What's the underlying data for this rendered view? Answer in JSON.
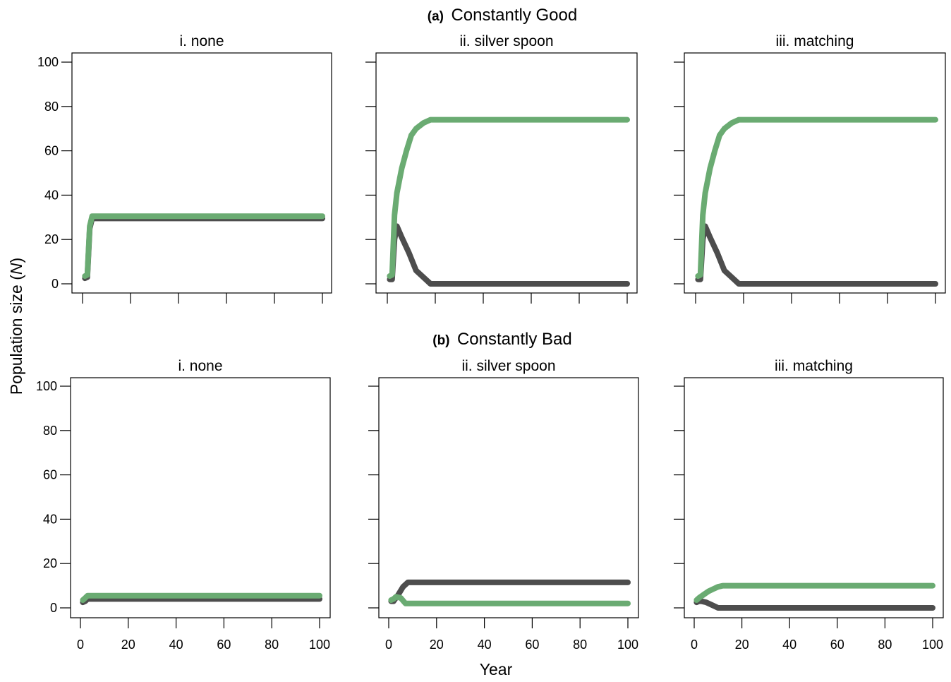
{
  "figure": {
    "ylabel_prefix": "Population size (",
    "ylabel_var": "N",
    "ylabel_suffix": ")",
    "xlabel": "Year",
    "sections": [
      {
        "tag": "(a)",
        "title": "Constantly Good"
      },
      {
        "tag": "(b)",
        "title": "Constantly Bad"
      }
    ],
    "y_ticks": [
      "0",
      "20",
      "40",
      "60",
      "80",
      "100"
    ],
    "x_ticks": [
      "0",
      "20",
      "40",
      "60",
      "80",
      "100"
    ],
    "colors": {
      "dark_series": "#4d4d4d",
      "green_series": "#6aab72",
      "axis": "#000000"
    }
  },
  "chart_data": [
    {
      "type": "line",
      "section": "Constantly Good",
      "title": "i. none",
      "xlim": [
        0,
        100
      ],
      "ylim": [
        0,
        100
      ],
      "series": [
        {
          "color": "#4d4d4d",
          "x": [
            1,
            2,
            3,
            4,
            100
          ],
          "y": [
            2.5,
            3,
            25,
            29.5,
            29.5
          ]
        },
        {
          "color": "#6aab72",
          "x": [
            1,
            2,
            3,
            4,
            100
          ],
          "y": [
            3.5,
            4,
            26,
            30.5,
            30.5
          ]
        }
      ]
    },
    {
      "type": "line",
      "section": "Constantly Good",
      "title": "ii. silver spoon",
      "xlim": [
        0,
        100
      ],
      "ylim": [
        0,
        100
      ],
      "series": [
        {
          "color": "#4d4d4d",
          "x": [
            1,
            2,
            3,
            4,
            6,
            9,
            12,
            15,
            18,
            20,
            100
          ],
          "y": [
            2,
            2,
            20,
            26,
            21,
            14,
            6,
            3,
            0,
            0,
            0
          ]
        },
        {
          "color": "#6aab72",
          "x": [
            1,
            2,
            3,
            4,
            6,
            8,
            10,
            12,
            15,
            18,
            20,
            100
          ],
          "y": [
            3.5,
            4,
            31,
            41,
            52,
            60,
            67,
            70,
            72.5,
            74,
            74,
            74
          ]
        }
      ]
    },
    {
      "type": "line",
      "section": "Constantly Good",
      "title": "iii. matching",
      "xlim": [
        0,
        100
      ],
      "ylim": [
        0,
        100
      ],
      "series": [
        {
          "color": "#4d4d4d",
          "x": [
            1,
            2,
            3,
            4,
            6,
            9,
            12,
            15,
            18,
            20,
            100
          ],
          "y": [
            2,
            2,
            20,
            26,
            21,
            14,
            6,
            3,
            0,
            0,
            0
          ]
        },
        {
          "color": "#6aab72",
          "x": [
            1,
            2,
            3,
            4,
            6,
            8,
            10,
            12,
            15,
            18,
            20,
            100
          ],
          "y": [
            3.5,
            4,
            31,
            41,
            52,
            60,
            67,
            70,
            72.5,
            74,
            74,
            74
          ]
        }
      ]
    },
    {
      "type": "line",
      "section": "Constantly Bad",
      "title": "i. none",
      "xlim": [
        0,
        100
      ],
      "ylim": [
        0,
        100
      ],
      "series": [
        {
          "color": "#4d4d4d",
          "x": [
            1,
            2,
            3,
            100
          ],
          "y": [
            2.5,
            3,
            4,
            4
          ]
        },
        {
          "color": "#6aab72",
          "x": [
            1,
            2,
            3,
            100
          ],
          "y": [
            3.5,
            4.5,
            5.5,
            5.5
          ]
        }
      ]
    },
    {
      "type": "line",
      "section": "Constantly Bad",
      "title": "ii. silver spoon",
      "xlim": [
        0,
        100
      ],
      "ylim": [
        0,
        100
      ],
      "series": [
        {
          "color": "#4d4d4d",
          "x": [
            1,
            2,
            4,
            6,
            8,
            10,
            100
          ],
          "y": [
            3,
            3,
            6,
            9.5,
            11.5,
            11.5,
            11.5
          ]
        },
        {
          "color": "#6aab72",
          "x": [
            1,
            2,
            3,
            5,
            7,
            100
          ],
          "y": [
            3.5,
            4,
            5,
            4.5,
            2,
            2
          ]
        }
      ]
    },
    {
      "type": "line",
      "section": "Constantly Bad",
      "title": "iii. matching",
      "xlim": [
        0,
        100
      ],
      "ylim": [
        0,
        100
      ],
      "series": [
        {
          "color": "#4d4d4d",
          "x": [
            1,
            2,
            3,
            5,
            7,
            9,
            10,
            100
          ],
          "y": [
            2.5,
            3,
            3,
            2.5,
            1.5,
            0.5,
            0,
            0
          ]
        },
        {
          "color": "#6aab72",
          "x": [
            1,
            2,
            4,
            6,
            8,
            10,
            12,
            100
          ],
          "y": [
            3.5,
            4.5,
            6,
            7.5,
            8.5,
            9.5,
            10,
            10
          ]
        }
      ]
    }
  ]
}
